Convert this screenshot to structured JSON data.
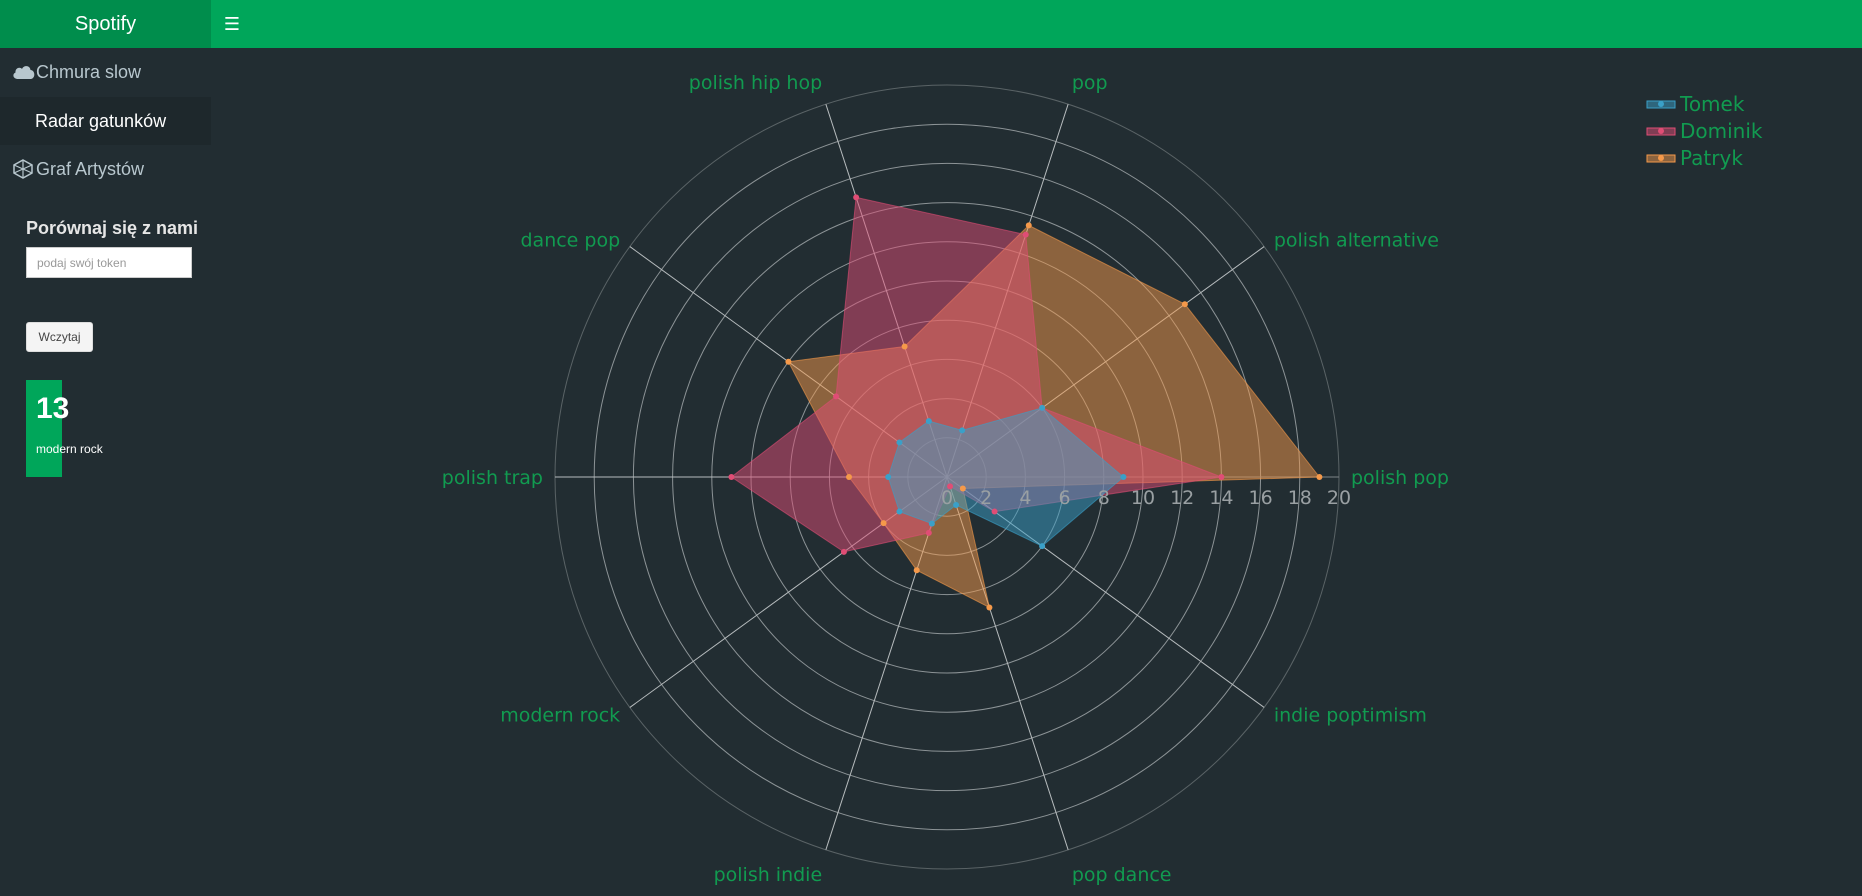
{
  "header": {
    "title": "Spotify",
    "menu_icon": "hamburger-icon"
  },
  "sidebar": {
    "items": [
      {
        "label": "Chmura slow",
        "icon": "cloud-icon",
        "active": false
      },
      {
        "label": "Radar gatunków",
        "icon": "",
        "active": true
      },
      {
        "label": "Graf Artystów",
        "icon": "network-icon",
        "active": false
      }
    ],
    "compare_title": "Porównaj się z nami",
    "token_placeholder": "podaj swój token",
    "load_button": "Wczytaj",
    "valuebox": {
      "value": "13",
      "subtitle": "modern rock"
    }
  },
  "colors": {
    "header_green": "#00a65a",
    "logo_green": "#008d4c",
    "background": "#222d32",
    "label_green": "#119b50",
    "tomek": "#3aa0c8",
    "dominik": "#e04d75",
    "patryk": "#f5994a"
  },
  "chart_data": {
    "type": "radar",
    "categories": [
      "polish pop",
      "polish alternative",
      "pop",
      "polish hip hop",
      "dance pop",
      "polish trap",
      "modern rock",
      "polish indie",
      "pop dance",
      "indie poptimism"
    ],
    "radial_ticks": [
      "0",
      "2",
      "4",
      "6",
      "8",
      "10",
      "12",
      "14",
      "16",
      "18",
      "20"
    ],
    "rlim": [
      0,
      20
    ],
    "legend_position": "top-right",
    "series": [
      {
        "name": "Tomek",
        "values": [
          9,
          6,
          2.5,
          3,
          3,
          3,
          3,
          2.5,
          1.5,
          6
        ]
      },
      {
        "name": "Dominik",
        "values": [
          14,
          6,
          13,
          15,
          7,
          11,
          6.5,
          3,
          0.5,
          3
        ]
      },
      {
        "name": "Patryk",
        "values": [
          19,
          15,
          13.5,
          7,
          10,
          5,
          4,
          5,
          7,
          1
        ]
      }
    ]
  }
}
